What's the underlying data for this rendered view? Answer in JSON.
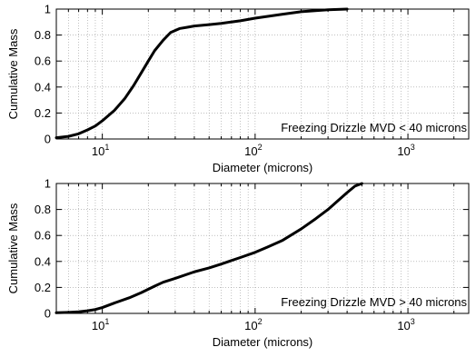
{
  "chart_data": [
    {
      "type": "line",
      "x_scale": "log",
      "xlim": [
        5,
        2500
      ],
      "ylim": [
        0,
        1
      ],
      "grid": true,
      "xlabel": "",
      "ylabel": "Cumulative Mass",
      "x_tick_base": "10",
      "x_tick_exponents": [
        "1",
        "2",
        "3"
      ],
      "y_tick_labels": [
        "0",
        "0.2",
        "0.4",
        "0.6",
        "0.8",
        "1"
      ],
      "annotation": "Freezing Drizzle MVD < 40 microns",
      "line_color": "#000000",
      "series": [
        {
          "x": [
            5,
            6,
            7,
            8,
            9,
            10,
            12,
            14,
            16,
            18,
            20,
            22,
            25,
            28,
            32,
            36,
            40,
            50,
            60,
            80,
            100,
            150,
            200,
            300,
            400
          ],
          "y": [
            0.01,
            0.02,
            0.04,
            0.07,
            0.1,
            0.14,
            0.22,
            0.31,
            0.41,
            0.51,
            0.6,
            0.68,
            0.76,
            0.82,
            0.85,
            0.86,
            0.87,
            0.88,
            0.89,
            0.91,
            0.93,
            0.96,
            0.98,
            0.995,
            1.0
          ]
        }
      ]
    },
    {
      "type": "line",
      "x_scale": "log",
      "xlim": [
        5,
        2500
      ],
      "ylim": [
        0,
        1
      ],
      "grid": true,
      "xlabel": "Diameter (microns)",
      "ylabel": "Cumulative Mass",
      "x_tick_base": "10",
      "x_tick_exponents": [
        "1",
        "2",
        "3"
      ],
      "y_tick_labels": [
        "0",
        "0.2",
        "0.4",
        "0.6",
        "0.8",
        "1"
      ],
      "annotation": "Freezing Drizzle MVD > 40 microns",
      "line_color": "#000000",
      "series": [
        {
          "x": [
            5,
            6,
            7,
            8,
            9,
            10,
            12,
            15,
            18,
            22,
            25,
            30,
            40,
            50,
            60,
            80,
            100,
            120,
            150,
            200,
            250,
            300,
            350,
            400,
            450,
            500
          ],
          "y": [
            0.005,
            0.008,
            0.012,
            0.02,
            0.03,
            0.045,
            0.08,
            0.12,
            0.16,
            0.21,
            0.24,
            0.27,
            0.32,
            0.35,
            0.38,
            0.43,
            0.47,
            0.51,
            0.56,
            0.65,
            0.73,
            0.8,
            0.87,
            0.93,
            0.98,
            1.0
          ]
        }
      ]
    }
  ]
}
